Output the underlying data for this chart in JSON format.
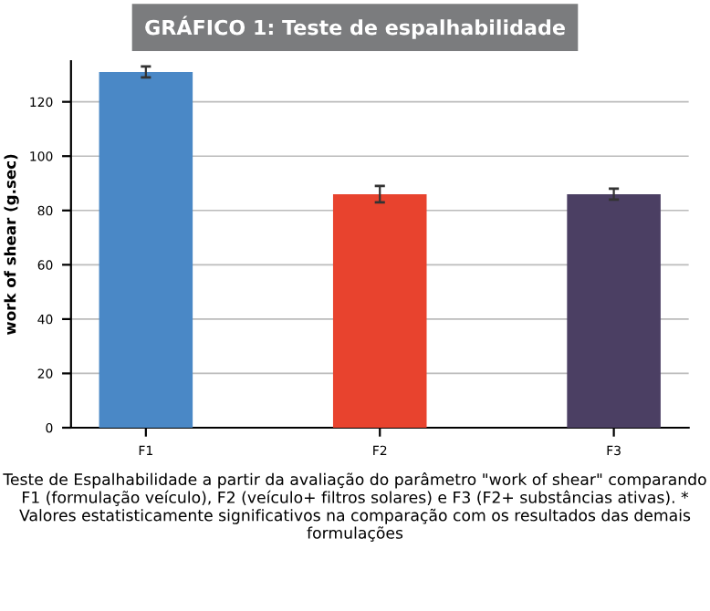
{
  "chart_data": {
    "type": "bar",
    "title": "GRÁFICO 1: Teste de espalhabilidade",
    "ylabel": "work of shear (g.sec)",
    "categories": [
      "F1",
      "F2",
      "F3"
    ],
    "values": [
      131,
      86,
      86
    ],
    "colors": [
      "#4a88c6",
      "#e8432e",
      "#4b3f63"
    ],
    "errors": [
      2,
      3,
      2
    ],
    "ylim": [
      0,
      135
    ],
    "yticks": [
      0,
      20,
      40,
      60,
      80,
      100,
      120
    ],
    "grid": "y",
    "annotations": [
      "Teste de Espalhabilidade a partir da avaliação do parâmetro \"work of shear\" comparando F1 (formulação veículo), F2 (veículo+ filtros solares) e F3 (F2+ substâncias ativas). * Valores estatisticamente significativos na comparação com os resultados das demais formulações"
    ]
  }
}
